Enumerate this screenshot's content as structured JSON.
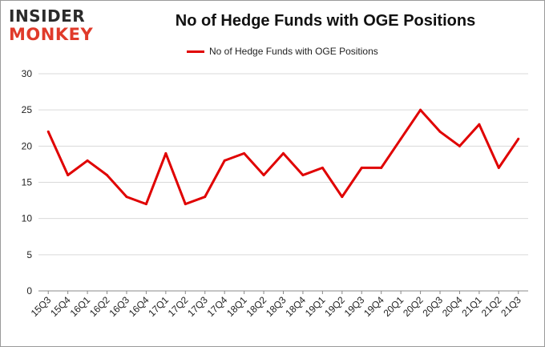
{
  "logo": {
    "line1": "INSIDER",
    "line2": "MONKEY"
  },
  "chart_data": {
    "type": "line",
    "title": "No of Hedge Funds with OGE Positions",
    "xlabel": "",
    "ylabel": "",
    "categories": [
      "15Q3",
      "15Q4",
      "16Q1",
      "16Q2",
      "16Q3",
      "16Q4",
      "17Q1",
      "17Q2",
      "17Q3",
      "17Q4",
      "18Q1",
      "18Q2",
      "18Q3",
      "18Q4",
      "19Q1",
      "19Q2",
      "19Q3",
      "19Q4",
      "20Q1",
      "20Q2",
      "20Q3",
      "20Q4",
      "21Q1",
      "21Q2",
      "21Q3"
    ],
    "series": [
      {
        "name": "No of Hedge Funds with OGE Positions",
        "values": [
          22,
          16,
          18,
          16,
          13,
          12,
          19,
          12,
          13,
          18,
          19,
          16,
          19,
          16,
          17,
          13,
          17,
          17,
          21,
          25,
          22,
          20,
          23,
          17,
          21
        ]
      }
    ],
    "ylim": [
      0,
      30
    ],
    "yticks": [
      0,
      5,
      10,
      15,
      20,
      25,
      30
    ],
    "grid": true,
    "legend_position": "top",
    "line_color": "#e00000"
  }
}
